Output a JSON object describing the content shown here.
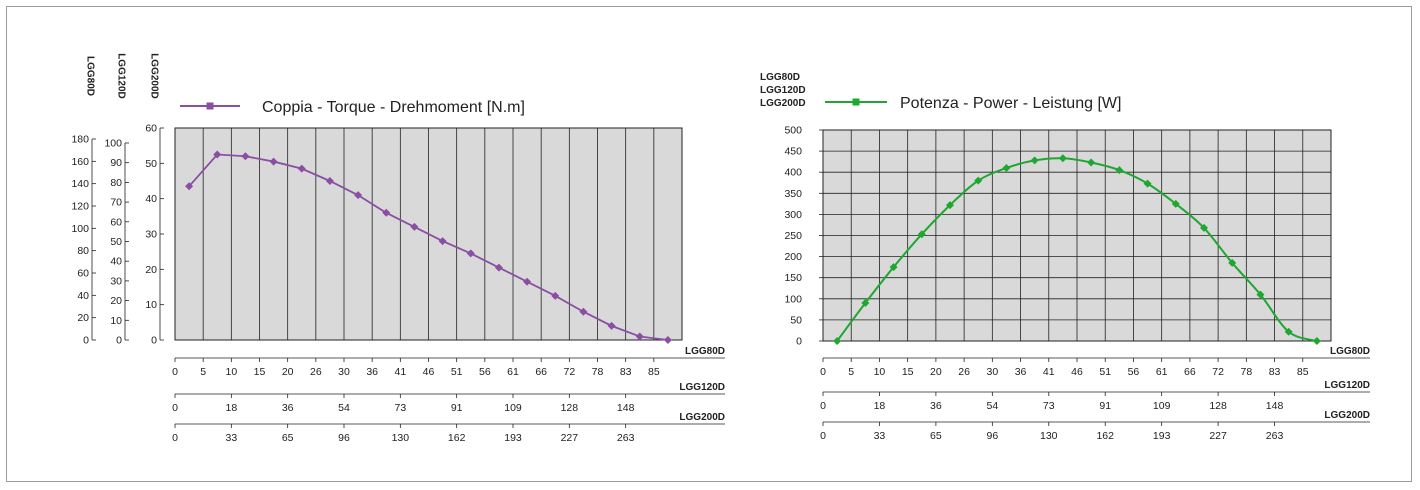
{
  "chart_data": [
    {
      "type": "line",
      "title": "Coppia - Torque - Drehmoment [N.m]",
      "legend": "top-left",
      "grid": "vertical",
      "plot_bg": "#d9d9d9",
      "color": "#8a4fa3",
      "marker": "diamond",
      "y_axes": [
        {
          "label": "LGG80D",
          "ticks": [
            "0",
            "20",
            "40",
            "60",
            "80",
            "100",
            "120",
            "140",
            "160",
            "180"
          ],
          "max": 180
        },
        {
          "label": "LGG120D",
          "ticks": [
            "0",
            "10",
            "20",
            "30",
            "40",
            "50",
            "60",
            "70",
            "80",
            "90",
            "100"
          ],
          "max": 100
        },
        {
          "label": "LGG200D",
          "ticks": [
            "0",
            "10",
            "20",
            "30",
            "40",
            "50",
            "60"
          ],
          "max": 60
        }
      ],
      "ylim": [
        0,
        60
      ],
      "x_axes": [
        {
          "label": "LGG80D",
          "ticks": [
            {
              "v": 0,
              "t": "0"
            },
            {
              "v": 1,
              "t": "5"
            },
            {
              "v": 2,
              "t": "10"
            },
            {
              "v": 3,
              "t": "15"
            },
            {
              "v": 4,
              "t": "20"
            },
            {
              "v": 5,
              "t": "26"
            },
            {
              "v": 6,
              "t": "30"
            },
            {
              "v": 7,
              "t": "36"
            },
            {
              "v": 8,
              "t": "41"
            },
            {
              "v": 9,
              "t": "46"
            },
            {
              "v": 10,
              "t": "51"
            },
            {
              "v": 11,
              "t": "56"
            },
            {
              "v": 12,
              "t": "61"
            },
            {
              "v": 13,
              "t": "66"
            },
            {
              "v": 14,
              "t": "72"
            },
            {
              "v": 15,
              "t": "78"
            },
            {
              "v": 16,
              "t": "83"
            },
            {
              "v": 17,
              "t": "85"
            }
          ]
        },
        {
          "label": "LGG120D",
          "ticks": [
            {
              "v": 0,
              "t": "0"
            },
            {
              "v": 2,
              "t": "18"
            },
            {
              "v": 4,
              "t": "36"
            },
            {
              "v": 6,
              "t": "54"
            },
            {
              "v": 8,
              "t": "73"
            },
            {
              "v": 10,
              "t": "91"
            },
            {
              "v": 12,
              "t": "109"
            },
            {
              "v": 14,
              "t": "128"
            },
            {
              "v": 16,
              "t": "148"
            }
          ]
        },
        {
          "label": "LGG200D",
          "ticks": [
            {
              "v": 0,
              "t": "0"
            },
            {
              "v": 2,
              "t": "33"
            },
            {
              "v": 4,
              "t": "65"
            },
            {
              "v": 6,
              "t": "96"
            },
            {
              "v": 8,
              "t": "130"
            },
            {
              "v": 10,
              "t": "162"
            },
            {
              "v": 12,
              "t": "193"
            },
            {
              "v": 14,
              "t": "227"
            },
            {
              "v": 16,
              "t": "263"
            }
          ]
        }
      ],
      "xlim": [
        0,
        18
      ],
      "series": [
        {
          "name": "Coppia - Torque - Drehmoment [N.m]",
          "x": [
            0.5,
            1.5,
            2.5,
            3.5,
            4.5,
            5.5,
            6.5,
            7.5,
            8.5,
            9.5,
            10.5,
            11.5,
            12.5,
            13.5,
            14.5,
            15.5,
            16.5,
            17.5
          ],
          "y": [
            43.5,
            52.5,
            52,
            50.5,
            48.5,
            45,
            41,
            36,
            32,
            28,
            24.5,
            20.5,
            16.5,
            12.5,
            8,
            4,
            1,
            0
          ]
        }
      ]
    },
    {
      "type": "line",
      "title": "Potenza - Power - Leistung [W]",
      "legend": "top-left",
      "grid": "both",
      "plot_bg": "#d9d9d9",
      "color": "#1ea832",
      "marker": "diamond",
      "y_label_lines": [
        "LGG80D",
        "LGG120D",
        "LGG200D"
      ],
      "y_ticks": [
        "0",
        "50",
        "100",
        "150",
        "200",
        "250",
        "300",
        "350",
        "400",
        "450",
        "500"
      ],
      "ylim": [
        0,
        500
      ],
      "x_axes": [
        {
          "label": "LGG80D",
          "ticks": [
            {
              "v": 0,
              "t": "0"
            },
            {
              "v": 1,
              "t": "5"
            },
            {
              "v": 2,
              "t": "10"
            },
            {
              "v": 3,
              "t": "15"
            },
            {
              "v": 4,
              "t": "20"
            },
            {
              "v": 5,
              "t": "26"
            },
            {
              "v": 6,
              "t": "30"
            },
            {
              "v": 7,
              "t": "36"
            },
            {
              "v": 8,
              "t": "41"
            },
            {
              "v": 9,
              "t": "46"
            },
            {
              "v": 10,
              "t": "51"
            },
            {
              "v": 11,
              "t": "56"
            },
            {
              "v": 12,
              "t": "61"
            },
            {
              "v": 13,
              "t": "66"
            },
            {
              "v": 14,
              "t": "72"
            },
            {
              "v": 15,
              "t": "78"
            },
            {
              "v": 16,
              "t": "83"
            },
            {
              "v": 17,
              "t": "85"
            }
          ]
        },
        {
          "label": "LGG120D",
          "ticks": [
            {
              "v": 0,
              "t": "0"
            },
            {
              "v": 2,
              "t": "18"
            },
            {
              "v": 4,
              "t": "36"
            },
            {
              "v": 6,
              "t": "54"
            },
            {
              "v": 8,
              "t": "73"
            },
            {
              "v": 10,
              "t": "91"
            },
            {
              "v": 12,
              "t": "109"
            },
            {
              "v": 14,
              "t": "128"
            },
            {
              "v": 16,
              "t": "148"
            }
          ]
        },
        {
          "label": "LGG200D",
          "ticks": [
            {
              "v": 0,
              "t": "0"
            },
            {
              "v": 2,
              "t": "33"
            },
            {
              "v": 4,
              "t": "65"
            },
            {
              "v": 6,
              "t": "96"
            },
            {
              "v": 8,
              "t": "130"
            },
            {
              "v": 10,
              "t": "162"
            },
            {
              "v": 12,
              "t": "193"
            },
            {
              "v": 14,
              "t": "227"
            },
            {
              "v": 16,
              "t": "263"
            }
          ]
        }
      ],
      "xlim": [
        0,
        18
      ],
      "series": [
        {
          "name": "Potenza - Power - Leistung [W]",
          "x": [
            0.5,
            1.5,
            2.5,
            3.5,
            4.5,
            5.5,
            6.5,
            7.5,
            8.5,
            9.5,
            10.5,
            11.5,
            12.5,
            13.5,
            14.5,
            15.5,
            16.5,
            17.5
          ],
          "y": [
            0,
            90,
            175,
            253,
            322,
            380,
            410,
            428,
            433,
            423,
            405,
            373,
            325,
            268,
            185,
            110,
            22,
            0
          ]
        }
      ]
    }
  ]
}
